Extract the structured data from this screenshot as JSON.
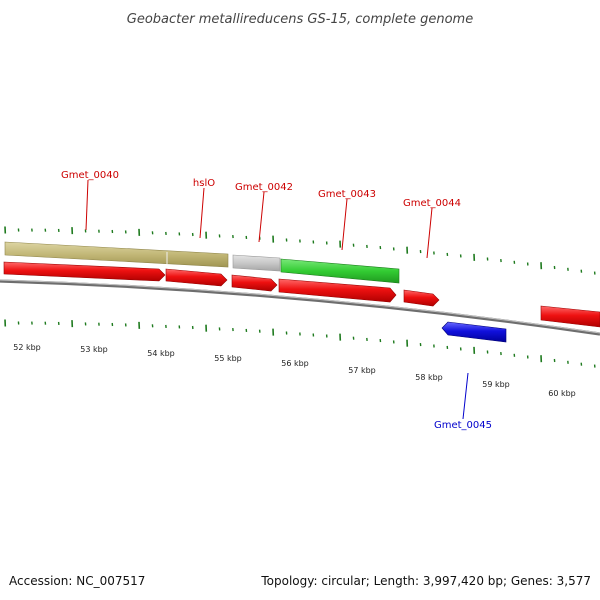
{
  "title": "Geobacter metallireducens GS-15, complete genome",
  "footer": {
    "accession": "Accession: NC_007517",
    "summary": "Topology: circular; Length: 3,997,420 bp; Genes: 3,577"
  },
  "scale": {
    "labels": [
      "52 kbp",
      "53 kbp",
      "54 kbp",
      "55 kbp",
      "56 kbp",
      "57 kbp",
      "58 kbp",
      "59 kbp",
      "60 kbp"
    ]
  },
  "genes": [
    {
      "name": "Gmet_0040",
      "color": "#cc0000"
    },
    {
      "name": "hslO",
      "color": "#cc0000"
    },
    {
      "name": "Gmet_0042",
      "color": "#cc0000"
    },
    {
      "name": "Gmet_0043",
      "color": "#cc0000"
    },
    {
      "name": "Gmet_0044",
      "color": "#cc0000"
    },
    {
      "name": "Gmet_0045",
      "color": "#0000cc"
    }
  ],
  "colors": {
    "forward_cds": "#ee1111",
    "reverse_cds": "#1111dd",
    "backbone": "#888888",
    "ticks": "#1e7a1e",
    "feature_tan": "#c2b777",
    "feature_gray": "#c8c8c8",
    "feature_green": "#33cc33"
  }
}
